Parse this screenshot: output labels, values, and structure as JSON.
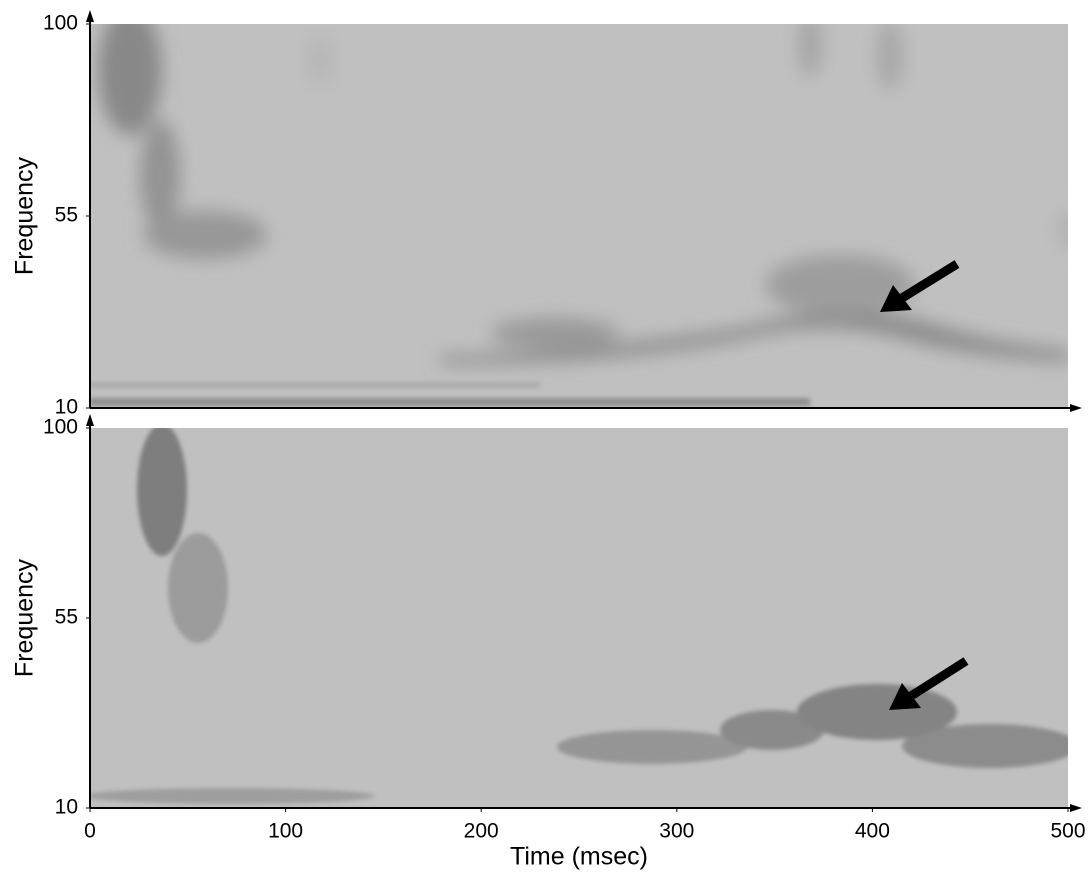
{
  "chart_data": [
    {
      "type": "heatmap",
      "ylabel": "Frequency",
      "ylim": [
        10,
        100
      ],
      "yticks": [
        10,
        55,
        100
      ],
      "xlim": [
        0,
        500
      ]
    },
    {
      "type": "heatmap",
      "ylabel": "Frequency",
      "xlabel": "Time (msec)",
      "ylim": [
        10,
        100
      ],
      "yticks": [
        10,
        55,
        100
      ],
      "xlim": [
        0,
        500
      ],
      "xticks": [
        0,
        100,
        200,
        300,
        400,
        500
      ]
    }
  ]
}
